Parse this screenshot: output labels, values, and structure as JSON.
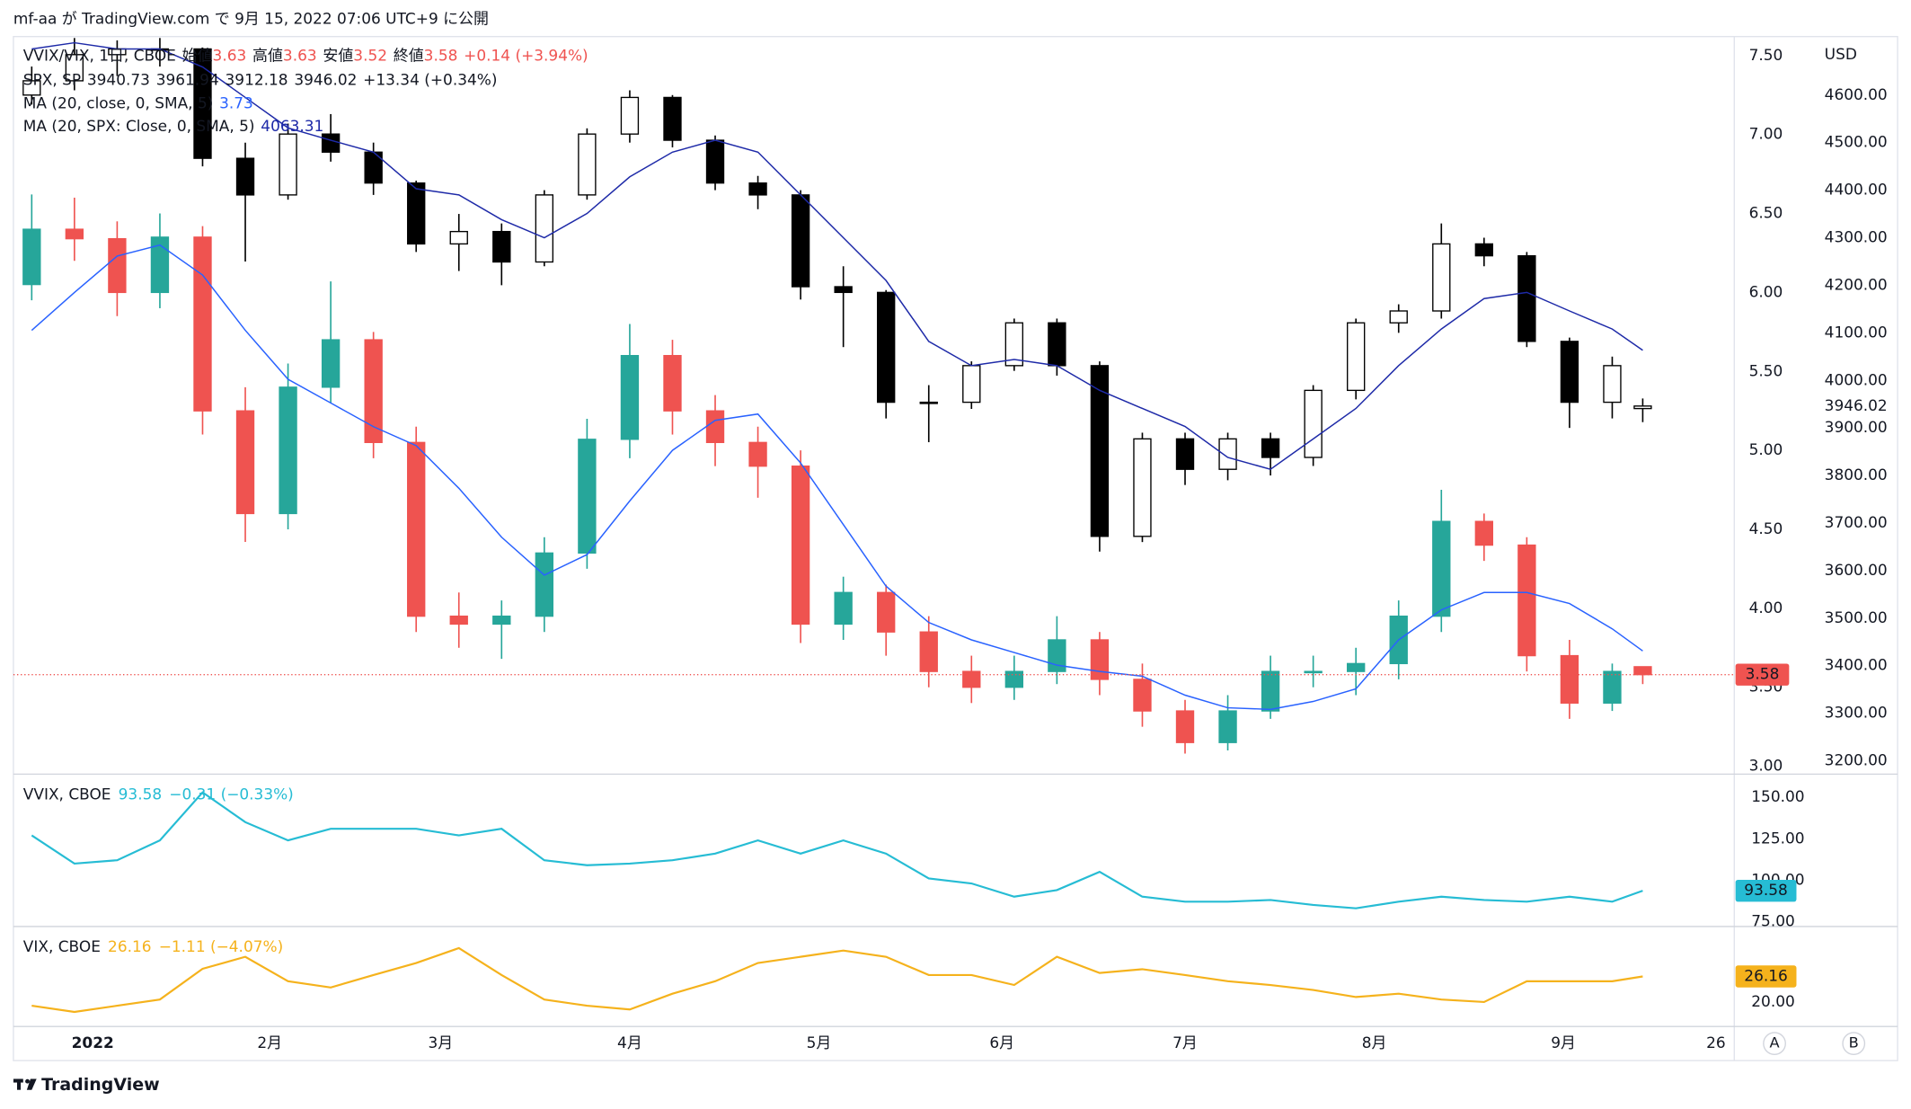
{
  "header": {
    "title": "mf-aa が TradingView.com で 9月 15, 2022 07:06 UTC+9 に公開"
  },
  "footer": {
    "brand": "TradingView"
  },
  "buttons": [
    "A",
    "B"
  ],
  "chart_data": [
    {
      "type": "candlestick",
      "x": [
        "2021-12-24",
        "2021-12-31",
        "2022-01-07",
        "2022-01-14",
        "2022-01-21",
        "2022-01-28",
        "2022-02-04",
        "2022-02-11",
        "2022-02-18",
        "2022-02-25",
        "2022-03-04",
        "2022-03-11",
        "2022-03-18",
        "2022-03-25",
        "2022-04-01",
        "2022-04-08",
        "2022-04-15",
        "2022-04-22",
        "2022-04-29",
        "2022-05-06",
        "2022-05-13",
        "2022-05-20",
        "2022-05-27",
        "2022-06-03",
        "2022-06-10",
        "2022-06-17",
        "2022-06-24",
        "2022-07-01",
        "2022-07-08",
        "2022-07-15",
        "2022-07-22",
        "2022-07-29",
        "2022-08-05",
        "2022-08-12",
        "2022-08-19",
        "2022-08-26",
        "2022-09-02",
        "2022-09-09",
        "2022-09-14"
      ],
      "xlim": [
        "2021-12-21",
        "2022-09-29"
      ],
      "xticks": [
        {
          "value": "2022-01-03",
          "label": "2022"
        },
        {
          "value": "2022-02-01",
          "label": "2月"
        },
        {
          "value": "2022-03-01",
          "label": "3月"
        },
        {
          "value": "2022-04-01",
          "label": "4月"
        },
        {
          "value": "2022-05-02",
          "label": "5月"
        },
        {
          "value": "2022-06-01",
          "label": "6月"
        },
        {
          "value": "2022-07-01",
          "label": "7月"
        },
        {
          "value": "2022-08-01",
          "label": "8月"
        },
        {
          "value": "2022-09-01",
          "label": "9月"
        },
        {
          "value": "2022-09-26",
          "label": "26"
        }
      ],
      "ylim": [
        2.95,
        7.62
      ],
      "yticks": [
        {
          "value": 3,
          "label": "3.00"
        },
        {
          "value": 3.5,
          "label": "3.50"
        },
        {
          "value": 4,
          "label": "4.00"
        },
        {
          "value": 4.5,
          "label": "4.50"
        },
        {
          "value": 5,
          "label": "5.00"
        },
        {
          "value": 5.5,
          "label": "5.50"
        },
        {
          "value": 6,
          "label": "6.00"
        },
        {
          "value": 6.5,
          "label": "6.50"
        },
        {
          "value": 7,
          "label": "7.00"
        },
        {
          "value": 7.5,
          "label": "7.50"
        }
      ],
      "y2lim": [
        3172,
        4723
      ],
      "y2ticks": [
        {
          "value": 3200,
          "label": "3200.00"
        },
        {
          "value": 3300,
          "label": "3300.00"
        },
        {
          "value": 3400,
          "label": "3400.00"
        },
        {
          "value": 3500,
          "label": "3500.00"
        },
        {
          "value": 3600,
          "label": "3600.00"
        },
        {
          "value": 3700,
          "label": "3700.00"
        },
        {
          "value": 3800,
          "label": "3800.00"
        },
        {
          "value": 3900,
          "label": "3900.00"
        },
        {
          "value": 4000,
          "label": "4000.00"
        },
        {
          "value": 4100,
          "label": "4100.00"
        },
        {
          "value": 4200,
          "label": "4200.00"
        },
        {
          "value": 4300,
          "label": "4300.00"
        },
        {
          "value": 4400,
          "label": "4400.00"
        },
        {
          "value": 4500,
          "label": "4500.00"
        },
        {
          "value": 4600,
          "label": "4600.00"
        }
      ],
      "y2_unit": "USD",
      "series": [
        {
          "name": "VVIX/VIX, 1日, CBOE",
          "ohlc_labels": [
            "始値",
            "高値",
            "安値",
            "終値"
          ],
          "change": "+0.14 (+3.94%)",
          "legend_color": "#ef5350",
          "up_color": "#26a69a",
          "down_color": "#ef5350",
          "open": [
            6.05,
            6.4,
            6.34,
            6.0,
            6.35,
            5.25,
            4.6,
            5.4,
            5.7,
            5.05,
            3.95,
            3.9,
            3.95,
            4.35,
            5.07,
            5.6,
            5.25,
            5.05,
            4.9,
            3.9,
            4.1,
            3.85,
            3.6,
            3.5,
            3.6,
            3.8,
            3.55,
            3.35,
            3.15,
            3.35,
            3.6,
            3.6,
            3.65,
            3.95,
            4.55,
            4.4,
            3.7,
            3.4,
            3.63
          ],
          "high": [
            6.62,
            6.6,
            6.45,
            6.5,
            6.42,
            5.4,
            5.55,
            6.07,
            5.75,
            5.15,
            4.1,
            4.05,
            4.45,
            5.2,
            5.8,
            5.7,
            5.35,
            5.15,
            5.0,
            4.2,
            4.15,
            3.95,
            3.7,
            3.7,
            3.95,
            3.85,
            3.65,
            3.42,
            3.45,
            3.7,
            3.7,
            3.75,
            4.05,
            4.75,
            4.6,
            4.45,
            3.8,
            3.65,
            3.63
          ],
          "low": [
            5.95,
            6.2,
            5.85,
            5.9,
            5.1,
            4.42,
            4.5,
            5.3,
            4.95,
            3.85,
            3.75,
            3.68,
            3.85,
            4.25,
            4.95,
            5.1,
            4.9,
            4.7,
            3.78,
            3.8,
            3.7,
            3.5,
            3.4,
            3.42,
            3.52,
            3.45,
            3.25,
            3.08,
            3.1,
            3.3,
            3.5,
            3.45,
            3.55,
            3.85,
            4.3,
            3.6,
            3.3,
            3.35,
            3.52
          ],
          "close": [
            6.4,
            6.34,
            6.0,
            6.35,
            5.25,
            4.6,
            5.4,
            5.7,
            5.05,
            3.95,
            3.9,
            3.95,
            4.35,
            5.07,
            5.6,
            5.25,
            5.05,
            4.9,
            3.9,
            4.1,
            3.85,
            3.6,
            3.5,
            3.6,
            3.8,
            3.55,
            3.35,
            3.15,
            3.35,
            3.6,
            3.6,
            3.65,
            3.95,
            4.55,
            4.4,
            3.7,
            3.4,
            3.6,
            3.58
          ]
        },
        {
          "name": "SPX, SP",
          "axis": "y2",
          "change": "+13.34 (+0.34%)",
          "legend_color": "#131722",
          "up_color": "#ffffff",
          "down_color": "#000000",
          "open": [
            4600,
            4630,
            4685,
            4697,
            4697,
            4467,
            4390,
            4518,
            4480,
            4415,
            4287,
            4313,
            4249,
            4390,
            4518,
            4595,
            4505,
            4415,
            4390,
            4197,
            4185,
            3954,
            3954,
            4031,
            4121,
            4031,
            3672,
            3877,
            3813,
            3877,
            3838,
            3979,
            4121,
            4146,
            4287,
            4262,
            4082,
            3954,
            3940.73
          ],
          "high": [
            4660,
            4720,
            4715,
            4720,
            4700,
            4500,
            4540,
            4560,
            4500,
            4420,
            4350,
            4330,
            4400,
            4530,
            4610,
            4600,
            4515,
            4430,
            4400,
            4240,
            4190,
            3990,
            4040,
            4130,
            4130,
            4040,
            3890,
            3890,
            3890,
            3890,
            3990,
            4130,
            4160,
            4330,
            4300,
            4270,
            4090,
            4050,
            3961.94
          ],
          "low": [
            4580,
            4610,
            4640,
            4660,
            4450,
            4250,
            4380,
            4460,
            4390,
            4270,
            4230,
            4200,
            4240,
            4380,
            4500,
            4490,
            4400,
            4360,
            4170,
            4070,
            3920,
            3870,
            3940,
            4020,
            4010,
            3640,
            3660,
            3780,
            3790,
            3800,
            3820,
            3960,
            4100,
            4130,
            4240,
            4070,
            3900,
            3920,
            3912.18
          ],
          "close": [
            4630,
            4685,
            4697,
            4697,
            4467,
            4390,
            4518,
            4480,
            4415,
            4287,
            4313,
            4249,
            4390,
            4518,
            4595,
            4505,
            4415,
            4390,
            4197,
            4185,
            3954,
            3954,
            4031,
            4121,
            4031,
            3672,
            3877,
            3813,
            3877,
            3838,
            3979,
            4121,
            4146,
            4287,
            4262,
            4082,
            3954,
            4031,
            3946.02
          ]
        }
      ],
      "overlays": [
        {
          "type": "line",
          "name": "MA (20, close, 0, SMA, 5)",
          "color": "#2962ff",
          "values": [
            5.76,
            6.0,
            6.23,
            6.3,
            6.11,
            5.76,
            5.45,
            5.3,
            5.15,
            5.03,
            4.76,
            4.45,
            4.21,
            4.34,
            4.68,
            5.0,
            5.19,
            5.23,
            4.92,
            4.53,
            4.14,
            3.91,
            3.8,
            3.72,
            3.64,
            3.6,
            3.57,
            3.45,
            3.37,
            3.36,
            3.41,
            3.49,
            3.8,
            3.99,
            4.1,
            4.1,
            4.03,
            3.87,
            3.73
          ]
        },
        {
          "type": "line",
          "name": "MA (20, SPX: Close, 0, SMA, 5)",
          "axis": "y2",
          "color": "#1e2aa8",
          "values": [
            4697,
            4710,
            4697,
            4697,
            4659,
            4595,
            4531,
            4505,
            4480,
            4403,
            4390,
            4338,
            4300,
            4351,
            4428,
            4480,
            4505,
            4480,
            4390,
            4300,
            4210,
            4082,
            4031,
            4044,
            4031,
            3979,
            3941,
            3903,
            3838,
            3813,
            3877,
            3941,
            4031,
            4108,
            4172,
            4185,
            4146,
            4108,
            4063.31
          ]
        }
      ]
    },
    {
      "type": "line",
      "name": "VVIX, CBOE",
      "change": "−0.31 (−0.33%)",
      "color": "#26bcd4",
      "label_text_color": "#ffffff",
      "ylim": [
        72,
        164
      ],
      "yticks": [
        {
          "value": 75,
          "label": "75.00"
        },
        {
          "value": 100,
          "label": "100.00"
        },
        {
          "value": 125,
          "label": "125.00"
        },
        {
          "value": 150,
          "label": "150.00"
        }
      ],
      "values": [
        127,
        110,
        112,
        124,
        153,
        135,
        124,
        131,
        131,
        131,
        127,
        131,
        112,
        109,
        110,
        112,
        116,
        124,
        116,
        124,
        116,
        101,
        98,
        90,
        94,
        105,
        90,
        87,
        87,
        88,
        85,
        83,
        87,
        90,
        88,
        87,
        90,
        87,
        93.58
      ]
    },
    {
      "type": "line",
      "name": "VIX, CBOE",
      "change": "−1.11 (−4.07%)",
      "color": "#f5b21c",
      "label_text_color": "#131722",
      "ylim": [
        14.1,
        38.2
      ],
      "yticks": [
        {
          "value": 20,
          "label": "20.00"
        }
      ],
      "values": [
        19.1,
        17.6,
        19.1,
        20.6,
        28,
        30.9,
        25,
        23.5,
        26.5,
        29.4,
        33,
        26.5,
        20.6,
        19.1,
        18.2,
        22,
        25,
        29.4,
        30.9,
        32.4,
        30.9,
        26.5,
        26.5,
        24.1,
        30.9,
        27,
        27.9,
        26.5,
        25,
        24.1,
        22.9,
        21.2,
        22,
        20.6,
        20,
        25,
        25,
        25,
        26.16
      ]
    }
  ]
}
